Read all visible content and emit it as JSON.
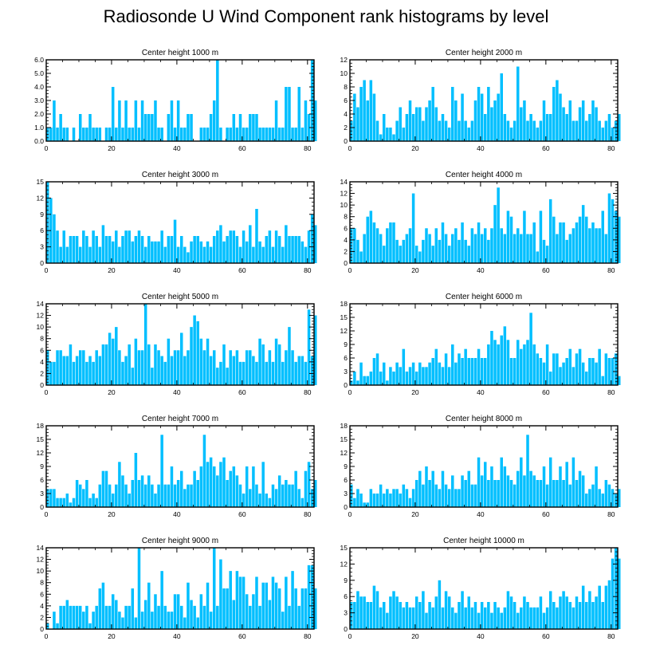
{
  "title": "Radiosonde U Wind Component rank histograms by level",
  "colors": {
    "bar": "#00bfff",
    "axis": "#000000",
    "background": "#ffffff"
  },
  "chart_data": [
    {
      "type": "bar",
      "title": "Center height 1000 m",
      "xlabel": "",
      "ylabel": "",
      "xlim": [
        0,
        82
      ],
      "ylim": [
        0,
        6
      ],
      "xticks": [
        0,
        20,
        40,
        60,
        80
      ],
      "yticks": [
        0,
        1,
        2,
        3,
        4,
        5,
        6
      ],
      "ytick_labels": [
        "0.0",
        "1.0",
        "2.0",
        "3.0",
        "4.0",
        "5.0",
        "6.0"
      ],
      "values": [
        1,
        1,
        3,
        1,
        2,
        1,
        1,
        0,
        1,
        0,
        2,
        1,
        1,
        2,
        1,
        1,
        1,
        0,
        1,
        1,
        4,
        1,
        3,
        1,
        3,
        1,
        1,
        3,
        1,
        3,
        2,
        2,
        2,
        3,
        1,
        1,
        0,
        2,
        3,
        1,
        3,
        1,
        1,
        2,
        2,
        0,
        0,
        1,
        1,
        1,
        2,
        3,
        6,
        1,
        0,
        1,
        1,
        2,
        1,
        2,
        1,
        1,
        2,
        2,
        2,
        1,
        1,
        1,
        1,
        1,
        3,
        1,
        1,
        4,
        4,
        1,
        1,
        4,
        1,
        3,
        2,
        6,
        3
      ]
    },
    {
      "type": "bar",
      "title": "Center height 2000 m",
      "xlabel": "",
      "ylabel": "",
      "xlim": [
        0,
        82
      ],
      "ylim": [
        0,
        12
      ],
      "xticks": [
        0,
        20,
        40,
        60,
        80
      ],
      "yticks": [
        0,
        2,
        4,
        6,
        8,
        10,
        12
      ],
      "ytick_labels": [
        "0",
        "2",
        "4",
        "6",
        "8",
        "10",
        "12"
      ],
      "values": [
        3,
        7,
        5,
        8,
        9,
        6,
        9,
        7,
        3,
        1,
        4,
        2,
        2,
        1,
        3,
        5,
        2,
        4,
        6,
        4,
        5,
        5,
        3,
        5,
        6,
        8,
        5,
        3,
        4,
        3,
        2,
        8,
        6,
        3,
        7,
        3,
        2,
        3,
        6,
        8,
        7,
        4,
        8,
        5,
        6,
        7,
        10,
        4,
        3,
        2,
        3,
        11,
        5,
        6,
        3,
        4,
        3,
        2,
        3,
        6,
        4,
        4,
        8,
        9,
        7,
        5,
        4,
        6,
        3,
        3,
        5,
        6,
        3,
        4,
        6,
        5,
        3,
        2,
        3,
        4,
        2,
        3,
        4
      ]
    },
    {
      "type": "bar",
      "title": "Center height 3000 m",
      "xlabel": "",
      "ylabel": "",
      "xlim": [
        0,
        82
      ],
      "ylim": [
        0,
        15
      ],
      "xticks": [
        0,
        20,
        40,
        60,
        80
      ],
      "yticks": [
        0,
        3,
        6,
        9,
        12,
        15
      ],
      "ytick_labels": [
        "0",
        "3",
        "6",
        "9",
        "12",
        "15"
      ],
      "values": [
        15,
        12,
        9,
        6,
        3,
        6,
        3,
        5,
        5,
        5,
        3,
        6,
        5,
        3,
        6,
        5,
        3,
        7,
        5,
        5,
        4,
        6,
        3,
        5,
        6,
        6,
        4,
        5,
        6,
        5,
        3,
        5,
        4,
        4,
        4,
        6,
        3,
        5,
        5,
        8,
        3,
        5,
        3,
        2,
        4,
        5,
        5,
        4,
        3,
        4,
        3,
        5,
        6,
        7,
        4,
        5,
        6,
        6,
        5,
        3,
        6,
        4,
        7,
        3,
        10,
        4,
        3,
        5,
        6,
        3,
        6,
        5,
        3,
        7,
        5,
        5,
        5,
        5,
        4,
        3,
        6,
        9,
        7
      ]
    },
    {
      "type": "bar",
      "title": "Center height 4000 m",
      "xlabel": "",
      "ylabel": "",
      "xlim": [
        0,
        82
      ],
      "ylim": [
        0,
        14
      ],
      "xticks": [
        0,
        20,
        40,
        60,
        80
      ],
      "yticks": [
        0,
        2,
        4,
        6,
        8,
        10,
        12,
        14
      ],
      "ytick_labels": [
        "0",
        "2",
        "4",
        "6",
        "8",
        "10",
        "12",
        "14"
      ],
      "values": [
        6,
        6,
        4,
        2,
        5,
        8,
        9,
        7,
        6,
        5,
        3,
        6,
        7,
        7,
        4,
        3,
        4,
        5,
        6,
        12,
        3,
        2,
        4,
        6,
        5,
        3,
        6,
        4,
        7,
        5,
        3,
        5,
        6,
        4,
        7,
        4,
        3,
        6,
        5,
        7,
        5,
        6,
        4,
        6,
        10,
        13,
        6,
        5,
        9,
        8,
        5,
        6,
        5,
        9,
        5,
        5,
        7,
        2,
        9,
        4,
        3,
        11,
        8,
        5,
        7,
        7,
        4,
        5,
        6,
        7,
        8,
        10,
        8,
        6,
        7,
        6,
        6,
        9,
        5,
        12,
        11,
        9,
        8
      ]
    },
    {
      "type": "bar",
      "title": "Center height 5000 m",
      "xlabel": "",
      "ylabel": "",
      "xlim": [
        0,
        82
      ],
      "ylim": [
        0,
        14
      ],
      "xticks": [
        0,
        20,
        40,
        60,
        80
      ],
      "yticks": [
        0,
        2,
        4,
        6,
        8,
        10,
        12,
        14
      ],
      "ytick_labels": [
        "0",
        "2",
        "4",
        "6",
        "8",
        "10",
        "12",
        "14"
      ],
      "values": [
        6,
        4,
        4,
        6,
        6,
        5,
        5,
        7,
        4,
        5,
        6,
        6,
        4,
        5,
        4,
        6,
        5,
        7,
        7,
        9,
        8,
        10,
        6,
        4,
        5,
        7,
        3,
        8,
        6,
        6,
        14,
        7,
        3,
        7,
        6,
        5,
        4,
        8,
        5,
        6,
        6,
        9,
        5,
        6,
        10,
        12,
        11,
        8,
        6,
        8,
        5,
        6,
        3,
        4,
        7,
        3,
        6,
        5,
        6,
        4,
        4,
        6,
        6,
        5,
        4,
        8,
        7,
        4,
        6,
        4,
        8,
        7,
        4,
        6,
        10,
        6,
        4,
        5,
        5,
        4,
        13,
        5,
        12
      ]
    },
    {
      "type": "bar",
      "title": "Center height 6000 m",
      "xlabel": "",
      "ylabel": "",
      "xlim": [
        0,
        82
      ],
      "ylim": [
        0,
        18
      ],
      "xticks": [
        0,
        20,
        40,
        60,
        80
      ],
      "yticks": [
        0,
        3,
        6,
        9,
        12,
        15,
        18
      ],
      "ytick_labels": [
        "0",
        "3",
        "6",
        "9",
        "12",
        "15",
        "18"
      ],
      "values": [
        1,
        3,
        1,
        5,
        2,
        2,
        3,
        6,
        7,
        3,
        5,
        1,
        4,
        3,
        5,
        4,
        8,
        3,
        4,
        5,
        3,
        5,
        4,
        4,
        5,
        6,
        8,
        5,
        4,
        7,
        4,
        9,
        5,
        7,
        6,
        8,
        6,
        6,
        6,
        8,
        6,
        6,
        9,
        12,
        10,
        9,
        11,
        13,
        10,
        6,
        6,
        10,
        8,
        9,
        10,
        16,
        9,
        7,
        6,
        5,
        9,
        3,
        7,
        7,
        4,
        5,
        6,
        8,
        4,
        7,
        8,
        5,
        3,
        6,
        6,
        5,
        8,
        2,
        7,
        6,
        6,
        7,
        2
      ]
    },
    {
      "type": "bar",
      "title": "Center height 7000 m",
      "xlabel": "",
      "ylabel": "",
      "xlim": [
        0,
        82
      ],
      "ylim": [
        0,
        18
      ],
      "xticks": [
        0,
        20,
        40,
        60,
        80
      ],
      "yticks": [
        0,
        3,
        6,
        9,
        12,
        15,
        18
      ],
      "ytick_labels": [
        "0",
        "3",
        "6",
        "9",
        "12",
        "15",
        "18"
      ],
      "values": [
        4,
        4,
        4,
        2,
        2,
        2,
        3,
        1,
        2,
        6,
        5,
        4,
        6,
        2,
        3,
        2,
        5,
        8,
        8,
        5,
        3,
        5,
        10,
        7,
        5,
        3,
        6,
        12,
        6,
        7,
        5,
        7,
        5,
        3,
        5,
        16,
        5,
        5,
        9,
        5,
        6,
        8,
        4,
        5,
        5,
        8,
        6,
        9,
        16,
        10,
        11,
        9,
        7,
        10,
        11,
        6,
        8,
        9,
        7,
        5,
        3,
        9,
        4,
        9,
        5,
        3,
        10,
        3,
        2,
        5,
        4,
        7,
        5,
        6,
        5,
        5,
        8,
        4,
        2,
        8,
        10,
        4,
        6
      ]
    },
    {
      "type": "bar",
      "title": "Center height 8000 m",
      "xlabel": "",
      "ylabel": "",
      "xlim": [
        0,
        82
      ],
      "ylim": [
        0,
        18
      ],
      "xticks": [
        0,
        20,
        40,
        60,
        80
      ],
      "yticks": [
        0,
        3,
        6,
        9,
        12,
        15,
        18
      ],
      "ytick_labels": [
        "0",
        "3",
        "6",
        "9",
        "12",
        "15",
        "18"
      ],
      "values": [
        5,
        2,
        4,
        3,
        1,
        1,
        4,
        3,
        3,
        5,
        3,
        4,
        3,
        4,
        4,
        3,
        5,
        4,
        2,
        4,
        6,
        8,
        5,
        9,
        6,
        8,
        5,
        4,
        8,
        5,
        4,
        7,
        4,
        4,
        7,
        6,
        8,
        5,
        5,
        11,
        7,
        10,
        6,
        9,
        6,
        6,
        11,
        9,
        7,
        6,
        5,
        8,
        11,
        7,
        16,
        8,
        7,
        6,
        6,
        9,
        5,
        11,
        6,
        6,
        9,
        6,
        10,
        5,
        11,
        6,
        8,
        7,
        3,
        4,
        5,
        9,
        4,
        3,
        6,
        5,
        4,
        3,
        4
      ]
    },
    {
      "type": "bar",
      "title": "Center height 9000 m",
      "xlabel": "",
      "ylabel": "",
      "xlim": [
        0,
        82
      ],
      "ylim": [
        0,
        14
      ],
      "xticks": [
        0,
        20,
        40,
        60,
        80
      ],
      "yticks": [
        0,
        2,
        4,
        6,
        8,
        10,
        12,
        14
      ],
      "ytick_labels": [
        "0",
        "2",
        "4",
        "6",
        "8",
        "10",
        "12",
        "14"
      ],
      "values": [
        1,
        0,
        3,
        1,
        4,
        4,
        5,
        4,
        4,
        4,
        4,
        3,
        4,
        1,
        3,
        4,
        7,
        8,
        4,
        4,
        6,
        5,
        3,
        2,
        4,
        4,
        7,
        2,
        14,
        3,
        5,
        8,
        3,
        6,
        4,
        10,
        4,
        3,
        3,
        6,
        6,
        4,
        2,
        8,
        5,
        4,
        2,
        6,
        4,
        8,
        3,
        14,
        4,
        12,
        7,
        7,
        10,
        5,
        10,
        9,
        9,
        6,
        4,
        6,
        9,
        4,
        8,
        8,
        5,
        9,
        8,
        7,
        3,
        9,
        4,
        10,
        7,
        4,
        7,
        7,
        11,
        11,
        7
      ]
    },
    {
      "type": "bar",
      "title": "Center height 10000 m",
      "xlabel": "",
      "ylabel": "",
      "xlim": [
        0,
        82
      ],
      "ylim": [
        0,
        15
      ],
      "xticks": [
        0,
        20,
        40,
        60,
        80
      ],
      "yticks": [
        0,
        3,
        6,
        9,
        12,
        15
      ],
      "ytick_labels": [
        "0",
        "3",
        "6",
        "9",
        "12",
        "15"
      ],
      "values": [
        5,
        5,
        7,
        6,
        6,
        5,
        5,
        8,
        7,
        4,
        5,
        3,
        6,
        7,
        6,
        5,
        4,
        5,
        4,
        4,
        6,
        5,
        7,
        3,
        5,
        4,
        6,
        9,
        4,
        7,
        6,
        4,
        3,
        5,
        7,
        4,
        6,
        4,
        5,
        3,
        5,
        4,
        5,
        3,
        5,
        4,
        3,
        4,
        7,
        6,
        5,
        3,
        4,
        6,
        5,
        4,
        4,
        4,
        6,
        3,
        4,
        7,
        5,
        4,
        6,
        7,
        6,
        5,
        4,
        6,
        5,
        8,
        5,
        7,
        5,
        6,
        8,
        5,
        8,
        9,
        13,
        15,
        13
      ]
    }
  ]
}
